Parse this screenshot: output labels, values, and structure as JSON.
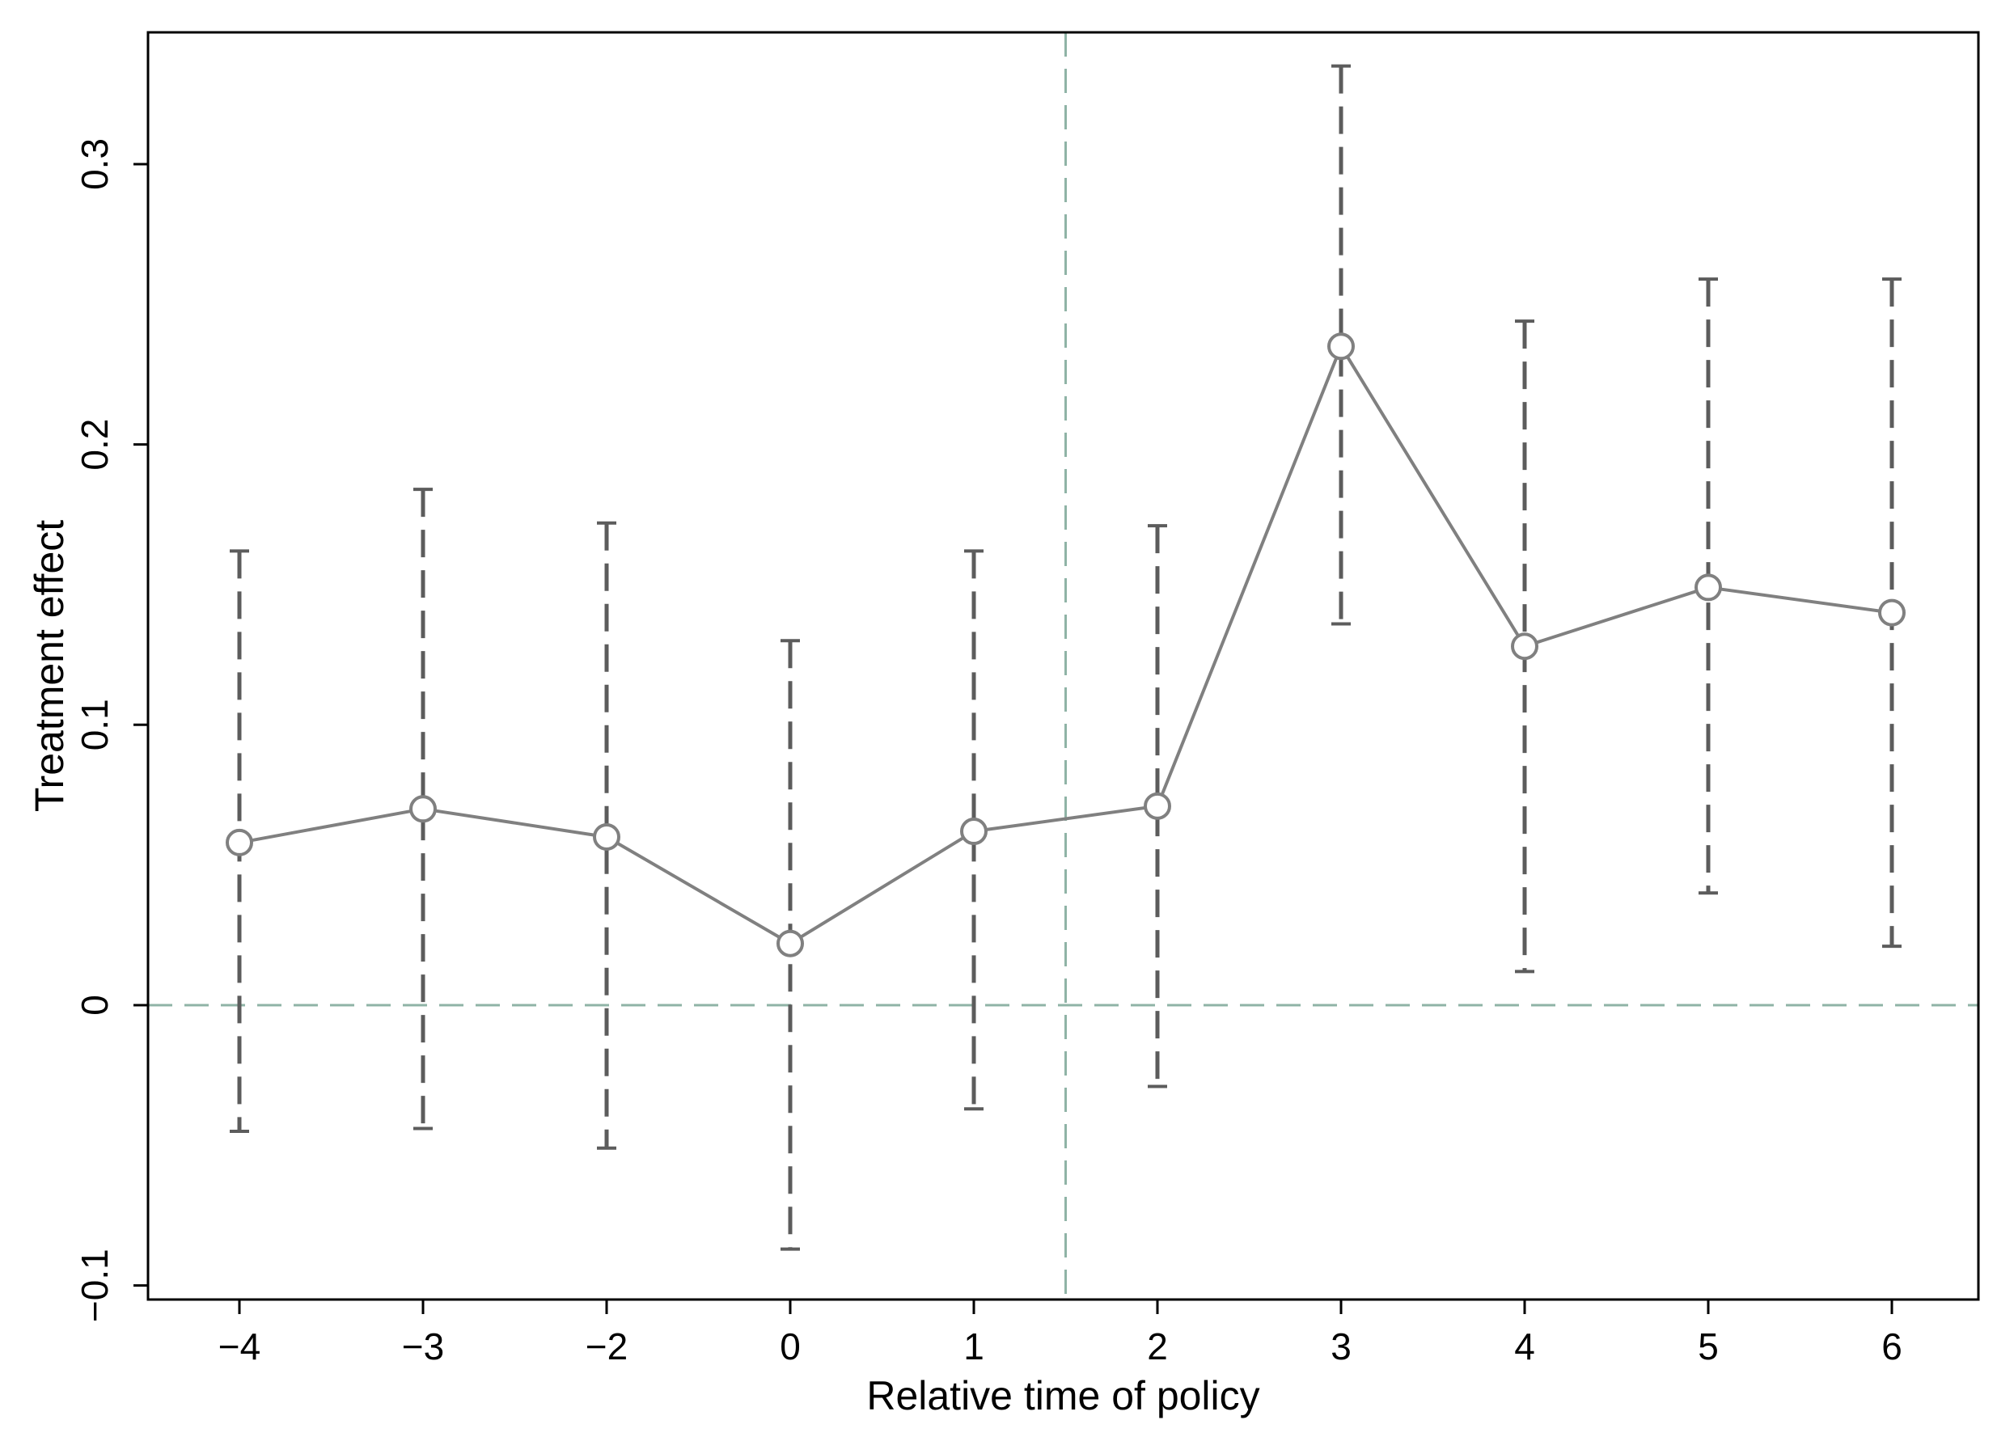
{
  "chart_data": {
    "type": "line",
    "xlabel": "Relative time of policy",
    "ylabel": "Treatment effect",
    "categories": [
      "−4",
      "−3",
      "−2",
      "0",
      "1",
      "2",
      "3",
      "4",
      "5",
      "6"
    ],
    "series": [
      {
        "values": [
          0.058,
          0.07,
          0.06,
          0.022,
          0.062,
          0.071,
          0.235,
          0.128,
          0.149,
          0.14
        ],
        "ci_lower": [
          -0.045,
          -0.044,
          -0.051,
          -0.087,
          -0.037,
          -0.029,
          0.136,
          0.012,
          0.04,
          0.021
        ],
        "ci_upper": [
          0.162,
          0.184,
          0.172,
          0.13,
          0.162,
          0.171,
          0.335,
          0.244,
          0.259,
          0.259
        ]
      }
    ],
    "ylim": [
      -0.105,
      0.347
    ],
    "yticks": [
      -0.1,
      0,
      0.1,
      0.2,
      0.3
    ],
    "ytick_labels": [
      "−0.1",
      "0",
      "0.1",
      "0.2",
      "0.3"
    ],
    "reference_lines": {
      "horizontal_y": 0,
      "vertical_between": [
        "1",
        "2"
      ]
    },
    "grid": false,
    "legend": "none",
    "colors": {
      "series": "#808080",
      "ci": "#5c5c5c",
      "reference": "#8fb3a6",
      "axes": "#000000"
    }
  }
}
